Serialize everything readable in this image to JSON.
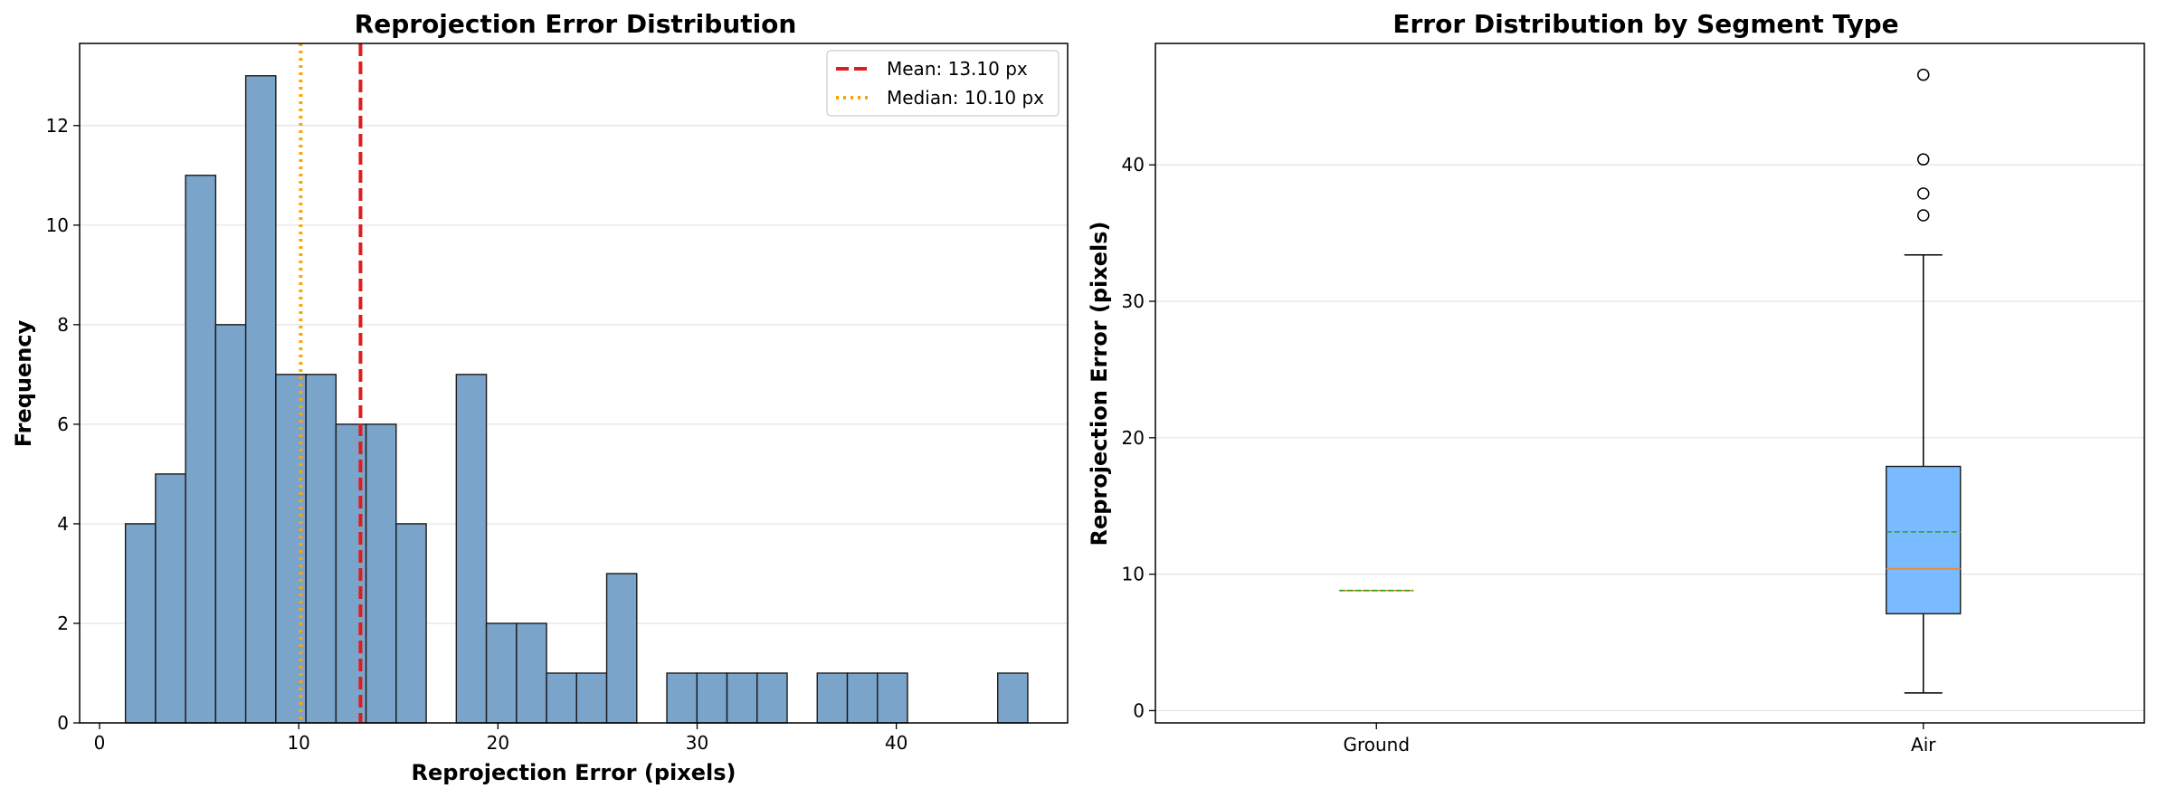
{
  "chart_data": [
    {
      "type": "bar",
      "title": "Reprojection Error Distribution",
      "xlabel": "Reprojection Error (pixels)",
      "ylabel": "Frequency",
      "xlim": [
        -1.0,
        48.6
      ],
      "ylim": [
        0,
        13.65
      ],
      "xticks": [
        0,
        10,
        20,
        30,
        40
      ],
      "yticks": [
        0,
        2,
        4,
        6,
        8,
        10,
        12
      ],
      "grid": "y",
      "bar_color": "#7ba4cb",
      "bins": [
        {
          "x0": 1.3,
          "x1": 2.81,
          "count": 4
        },
        {
          "x0": 2.81,
          "x1": 4.32,
          "count": 5
        },
        {
          "x0": 4.32,
          "x1": 5.83,
          "count": 11
        },
        {
          "x0": 5.83,
          "x1": 7.34,
          "count": 8
        },
        {
          "x0": 7.34,
          "x1": 8.85,
          "count": 13
        },
        {
          "x0": 8.85,
          "x1": 10.36,
          "count": 7
        },
        {
          "x0": 10.36,
          "x1": 11.87,
          "count": 7
        },
        {
          "x0": 11.87,
          "x1": 13.38,
          "count": 6
        },
        {
          "x0": 13.38,
          "x1": 14.89,
          "count": 6
        },
        {
          "x0": 14.89,
          "x1": 16.4,
          "count": 4
        },
        {
          "x0": 16.4,
          "x1": 17.91,
          "count": 0
        },
        {
          "x0": 17.91,
          "x1": 19.42,
          "count": 7
        },
        {
          "x0": 19.42,
          "x1": 20.93,
          "count": 2
        },
        {
          "x0": 20.93,
          "x1": 22.44,
          "count": 2
        },
        {
          "x0": 22.44,
          "x1": 23.95,
          "count": 1
        },
        {
          "x0": 23.95,
          "x1": 25.46,
          "count": 1
        },
        {
          "x0": 25.46,
          "x1": 26.97,
          "count": 3
        },
        {
          "x0": 26.97,
          "x1": 28.48,
          "count": 0
        },
        {
          "x0": 28.48,
          "x1": 29.99,
          "count": 1
        },
        {
          "x0": 29.99,
          "x1": 31.5,
          "count": 1
        },
        {
          "x0": 31.5,
          "x1": 33.01,
          "count": 1
        },
        {
          "x0": 33.01,
          "x1": 34.52,
          "count": 1
        },
        {
          "x0": 34.52,
          "x1": 36.03,
          "count": 0
        },
        {
          "x0": 36.03,
          "x1": 37.54,
          "count": 1
        },
        {
          "x0": 37.54,
          "x1": 39.05,
          "count": 1
        },
        {
          "x0": 39.05,
          "x1": 40.56,
          "count": 1
        },
        {
          "x0": 40.56,
          "x1": 42.07,
          "count": 0
        },
        {
          "x0": 42.07,
          "x1": 43.58,
          "count": 0
        },
        {
          "x0": 43.58,
          "x1": 45.09,
          "count": 0
        },
        {
          "x0": 45.09,
          "x1": 46.6,
          "count": 1
        }
      ],
      "vlines": [
        {
          "label": "Mean: 13.10 px",
          "x": 13.1,
          "color": "#e31a1c",
          "style": "dashed"
        },
        {
          "label": "Median: 10.10 px",
          "x": 10.1,
          "color": "#ffa500",
          "style": "dotted"
        }
      ],
      "legend": "top-right"
    },
    {
      "type": "box",
      "title": "Error Distribution by Segment Type",
      "xlabel": "",
      "ylabel": "Reprojection Error (pixels)",
      "ylim": [
        -0.9,
        48.9
      ],
      "yticks": [
        0,
        10,
        20,
        30,
        40
      ],
      "grid": "y",
      "box_color": "#7abaff",
      "median_color": "#f08a24",
      "mean_color": "#2ca02c",
      "categories": [
        "Ground",
        "Air"
      ],
      "boxes": [
        {
          "name": "Ground",
          "whisker_low": 8.8,
          "q1": 8.8,
          "median": 8.8,
          "mean": 8.8,
          "q3": 8.8,
          "whisker_high": 8.8,
          "outliers": []
        },
        {
          "name": "Air",
          "whisker_low": 1.3,
          "q1": 7.1,
          "median": 10.4,
          "mean": 13.1,
          "q3": 17.9,
          "whisker_high": 33.4,
          "outliers": [
            36.3,
            37.9,
            40.4,
            46.6
          ]
        }
      ]
    }
  ]
}
